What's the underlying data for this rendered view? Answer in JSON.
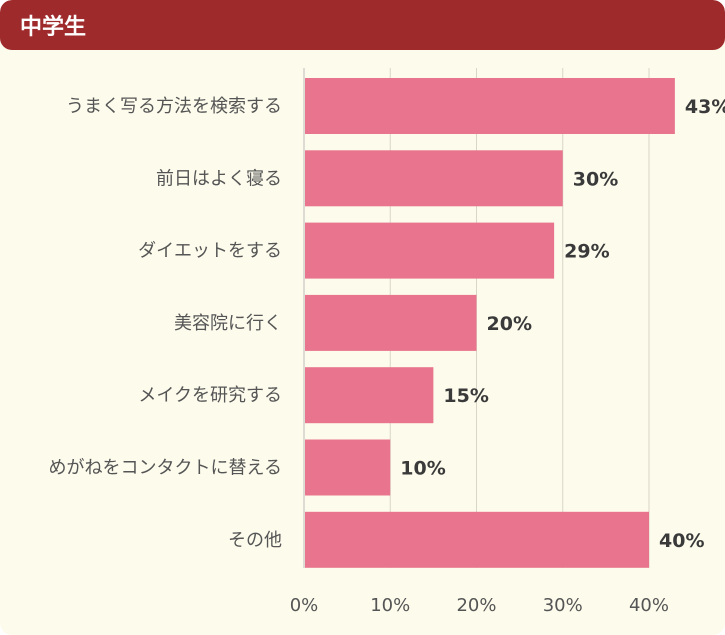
{
  "header": {
    "title": "中学生"
  },
  "colors": {
    "header": "#9e2a2b",
    "bar": "#e8758d",
    "background": "#fdfbec",
    "grid": "#d9d6c8"
  },
  "chart_data": {
    "type": "bar",
    "orientation": "horizontal",
    "title": "中学生",
    "categories": [
      "うまく写る方法を検索する",
      "前日はよく寝る",
      "ダイエットをする",
      "美容院に行く",
      "メイクを研究する",
      "めがねをコンタクトに替える",
      "その他"
    ],
    "values": [
      43,
      30,
      29,
      20,
      15,
      10,
      40
    ],
    "value_labels": [
      "43%",
      "30%",
      "29%",
      "20%",
      "15%",
      "10%",
      "40%"
    ],
    "xlim": [
      0,
      40
    ],
    "x_ticks": [
      0,
      10,
      20,
      30,
      40
    ],
    "x_tick_labels": [
      "0%",
      "10%",
      "20%",
      "30%",
      "40%"
    ],
    "grid": true,
    "legend": "none"
  }
}
